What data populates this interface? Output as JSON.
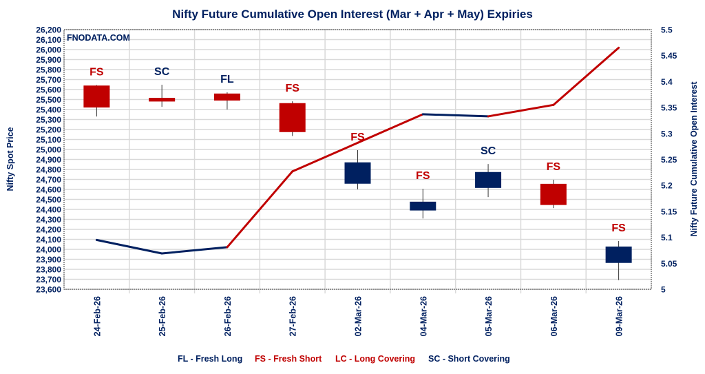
{
  "chart_data": {
    "type": "candlestick+line",
    "title": "Nifty Future Cumulative Open Interest (Mar + Apr + May) Expiries",
    "watermark": "FNODATA.COM",
    "ylabel_left": "Nifty Spot Price",
    "ylabel_right": "Nifty Future Cumulative Open Interest",
    "ylim_left": [
      23600,
      26200
    ],
    "ylim_right": [
      5,
      5.5
    ],
    "yticks_left": [
      "26,200",
      "26,100",
      "26,000",
      "25,900",
      "25,800",
      "25,700",
      "25,600",
      "25,500",
      "25,400",
      "25,300",
      "25,200",
      "25,100",
      "25,000",
      "24,900",
      "24,800",
      "24,700",
      "24,600",
      "24,500",
      "24,400",
      "24,300",
      "24,200",
      "24,100",
      "24,000",
      "23,900",
      "23,800",
      "23,700",
      "23,600"
    ],
    "yticks_right": [
      "5.5",
      "5.45",
      "5.4",
      "5.35",
      "5.3",
      "5.25",
      "5.2",
      "5.15",
      "5.1",
      "5.05",
      "5"
    ],
    "grid": true,
    "categories": [
      "24-Feb-26",
      "25-Feb-26",
      "26-Feb-26",
      "27-Feb-26",
      "02-Mar-26",
      "04-Mar-26",
      "05-Mar-26",
      "06-Mar-26",
      "09-Mar-26"
    ],
    "candles": [
      {
        "open": 25640,
        "high": 25645,
        "low": 25330,
        "close": 25420,
        "label": "FS"
      },
      {
        "open": 25517,
        "high": 25648,
        "low": 25427,
        "close": 25480,
        "label": "SC"
      },
      {
        "open": 25560,
        "high": 25572,
        "low": 25400,
        "close": 25490,
        "label": "FL"
      },
      {
        "open": 25464,
        "high": 25482,
        "low": 25135,
        "close": 25174,
        "label": "FS"
      },
      {
        "open": 24657,
        "high": 24993,
        "low": 24601,
        "close": 24871,
        "label": "FS"
      },
      {
        "open": 24389,
        "high": 24606,
        "low": 24309,
        "close": 24477,
        "label": "FS"
      },
      {
        "open": 24615,
        "high": 24854,
        "low": 24523,
        "close": 24774,
        "label": "SC"
      },
      {
        "open": 24656,
        "high": 24697,
        "low": 24413,
        "close": 24444,
        "label": "FS"
      },
      {
        "open": 23864,
        "high": 24083,
        "low": 23692,
        "close": 24028,
        "label": "FS"
      }
    ],
    "open_interest": [
      5.095,
      5.069,
      5.081,
      5.227,
      5.282,
      5.337,
      5.333,
      5.355,
      5.465
    ],
    "legend": [
      {
        "text": "FL - Fresh Long",
        "color": "#002060"
      },
      {
        "text": "FS - Fresh Short",
        "color": "#c00000"
      },
      {
        "text": "LC - Long Covering",
        "color": "#c00000"
      },
      {
        "text": "SC - Short Covering",
        "color": "#002060"
      }
    ],
    "legend_placement": "bottom",
    "colors": {
      "up": "#002060",
      "down": "#c00000",
      "bullish_label": "#002060",
      "bearish_label": "#c00000"
    }
  }
}
